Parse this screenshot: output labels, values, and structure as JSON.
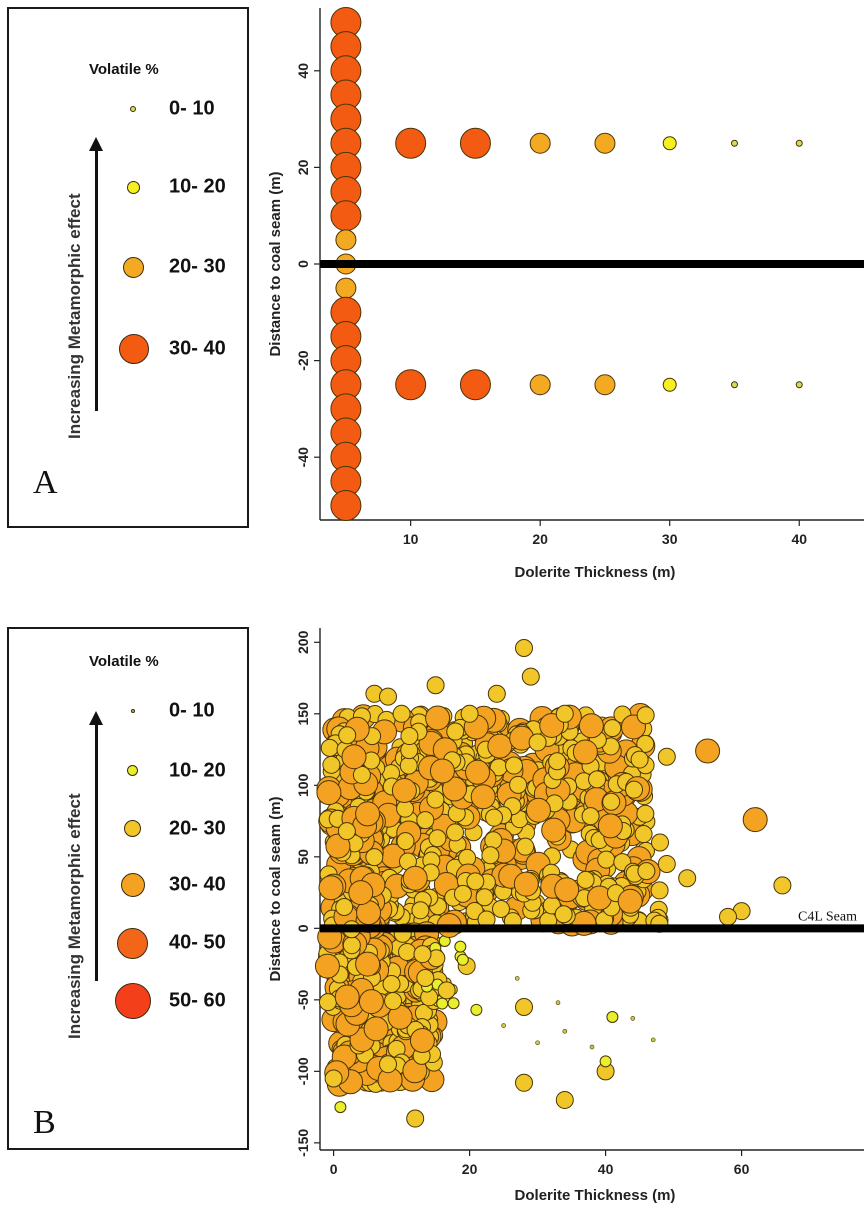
{
  "chart_data": [
    {
      "panel": "A",
      "type": "scatter",
      "xlabel": "Dolerite Thickness (m)",
      "ylabel": "Distance to coal seam (m)",
      "xlim": [
        3,
        45
      ],
      "ylim": [
        -53,
        53
      ],
      "xticks": [
        10,
        20,
        30,
        40
      ],
      "yticks": [
        -40,
        -20,
        0,
        20,
        40
      ],
      "seam_line_y": 0,
      "legend": {
        "title": "Volatile %",
        "items": [
          {
            "label": "0- 10",
            "color": "#d6dc58",
            "size": 6
          },
          {
            "label": "10- 20",
            "color": "#f7f020",
            "size": 13
          },
          {
            "label": "20- 30",
            "color": "#f3a921",
            "size": 20
          },
          {
            "label": "30- 40",
            "color": "#f35a12",
            "size": 30
          }
        ]
      },
      "points": [
        {
          "x": 5,
          "y": 50,
          "v": 38
        },
        {
          "x": 5,
          "y": 45,
          "v": 38
        },
        {
          "x": 5,
          "y": 40,
          "v": 38
        },
        {
          "x": 5,
          "y": 35,
          "v": 38
        },
        {
          "x": 5,
          "y": 30,
          "v": 38
        },
        {
          "x": 5,
          "y": 25,
          "v": 37
        },
        {
          "x": 5,
          "y": 20,
          "v": 36
        },
        {
          "x": 5,
          "y": 15,
          "v": 35
        },
        {
          "x": 5,
          "y": 10,
          "v": 31
        },
        {
          "x": 5,
          "y": 5,
          "v": 25
        },
        {
          "x": 5,
          "y": 0,
          "v": 20
        },
        {
          "x": 5,
          "y": -5,
          "v": 25
        },
        {
          "x": 5,
          "y": -10,
          "v": 31
        },
        {
          "x": 5,
          "y": -15,
          "v": 35
        },
        {
          "x": 5,
          "y": -20,
          "v": 36
        },
        {
          "x": 5,
          "y": -25,
          "v": 37
        },
        {
          "x": 5,
          "y": -30,
          "v": 38
        },
        {
          "x": 5,
          "y": -35,
          "v": 38
        },
        {
          "x": 5,
          "y": -40,
          "v": 38
        },
        {
          "x": 5,
          "y": -45,
          "v": 38
        },
        {
          "x": 5,
          "y": -50,
          "v": 38
        },
        {
          "x": 10,
          "y": 25,
          "v": 37
        },
        {
          "x": 15,
          "y": 25,
          "v": 33
        },
        {
          "x": 20,
          "y": 25,
          "v": 27
        },
        {
          "x": 25,
          "y": 25,
          "v": 23
        },
        {
          "x": 30,
          "y": 25,
          "v": 14
        },
        {
          "x": 35,
          "y": 25,
          "v": 8
        },
        {
          "x": 40,
          "y": 25,
          "v": 2
        },
        {
          "x": 10,
          "y": -25,
          "v": 37
        },
        {
          "x": 15,
          "y": -25,
          "v": 33
        },
        {
          "x": 20,
          "y": -25,
          "v": 27
        },
        {
          "x": 25,
          "y": -25,
          "v": 23
        },
        {
          "x": 30,
          "y": -25,
          "v": 14
        },
        {
          "x": 35,
          "y": -25,
          "v": 8
        },
        {
          "x": 40,
          "y": -25,
          "v": 2
        }
      ]
    },
    {
      "panel": "B",
      "type": "scatter",
      "xlabel": "Dolerite Thickness (m)",
      "ylabel": "Distance to coal seam (m)",
      "xlim": [
        -2,
        78
      ],
      "ylim": [
        -155,
        210
      ],
      "xticks": [
        0,
        20,
        40,
        60
      ],
      "yticks": [
        -150,
        -100,
        -50,
        0,
        50,
        100,
        150,
        200
      ],
      "seam_line_y": 0,
      "seam_label": "C4L Seam",
      "legend": {
        "title": "Volatile %",
        "items": [
          {
            "label": "0- 10",
            "color": "#c9c94a",
            "size": 4
          },
          {
            "label": "10- 20",
            "color": "#e8ef2c",
            "size": 11
          },
          {
            "label": "20- 30",
            "color": "#f1c628",
            "size": 17
          },
          {
            "label": "30- 40",
            "color": "#f3a321",
            "size": 24
          },
          {
            "label": "40- 50",
            "color": "#f3661a",
            "size": 31
          },
          {
            "label": "50- 60",
            "color": "#f3401a",
            "size": 36
          }
        ]
      },
      "points": [
        {
          "x": 28,
          "y": 196,
          "v": 28
        },
        {
          "x": 29,
          "y": 176,
          "v": 27
        },
        {
          "x": 6,
          "y": 164,
          "v": 28
        },
        {
          "x": 8,
          "y": 162,
          "v": 26
        },
        {
          "x": 15,
          "y": 170,
          "v": 24
        },
        {
          "x": 24,
          "y": 164,
          "v": 25
        },
        {
          "x": 55,
          "y": 124,
          "v": 36
        },
        {
          "x": 62,
          "y": 76,
          "v": 33
        },
        {
          "x": 66,
          "y": 30,
          "v": 24
        },
        {
          "x": 60,
          "y": 12,
          "v": 22
        },
        {
          "x": 58,
          "y": 8,
          "v": 20
        },
        {
          "x": 16,
          "y": 110,
          "v": 38
        },
        {
          "x": 22,
          "y": 92,
          "v": 35
        },
        {
          "x": 3,
          "y": 120,
          "v": 33
        },
        {
          "x": 5,
          "y": 80,
          "v": 34
        },
        {
          "x": 12,
          "y": 35,
          "v": 34
        },
        {
          "x": 4,
          "y": 25,
          "v": 32
        },
        {
          "x": 17,
          "y": 2,
          "v": 34
        },
        {
          "x": 5,
          "y": -25,
          "v": 32
        },
        {
          "x": 2,
          "y": -48,
          "v": 31
        },
        {
          "x": 8,
          "y": -95,
          "v": 27
        },
        {
          "x": 12,
          "y": -133,
          "v": 26
        },
        {
          "x": 1,
          "y": -125,
          "v": 15
        },
        {
          "x": 0,
          "y": -105,
          "v": 22
        },
        {
          "x": 28,
          "y": -108,
          "v": 25
        },
        {
          "x": 34,
          "y": -120,
          "v": 23
        },
        {
          "x": 40,
          "y": -100,
          "v": 20
        },
        {
          "x": 40,
          "y": -93,
          "v": 18
        },
        {
          "x": 41,
          "y": -62,
          "v": 19
        },
        {
          "x": 28,
          "y": -55,
          "v": 23
        },
        {
          "x": 21,
          "y": -57,
          "v": 15
        },
        {
          "x": 19,
          "y": -22,
          "v": 14
        },
        {
          "x": 33,
          "y": -52,
          "v": 8
        },
        {
          "x": 34,
          "y": -72,
          "v": 8
        },
        {
          "x": 30,
          "y": -80,
          "v": 5
        },
        {
          "x": 47,
          "y": -78,
          "v": 4
        },
        {
          "x": 38,
          "y": -83,
          "v": 4
        },
        {
          "x": 25,
          "y": -68,
          "v": 5
        },
        {
          "x": 27,
          "y": -35,
          "v": 5
        },
        {
          "x": 44,
          "y": -63,
          "v": 4
        },
        {
          "x": 48,
          "y": 60,
          "v": 28
        },
        {
          "x": 49,
          "y": 45,
          "v": 27
        },
        {
          "x": 46,
          "y": 40,
          "v": 25
        },
        {
          "x": 52,
          "y": 35,
          "v": 20
        },
        {
          "x": 49,
          "y": 120,
          "v": 24
        },
        {
          "x": 45,
          "y": 118,
          "v": 23
        },
        {
          "x": 41,
          "y": 140,
          "v": 25
        },
        {
          "x": 34,
          "y": 150,
          "v": 24
        },
        {
          "x": 30,
          "y": 130,
          "v": 26
        },
        {
          "x": 20,
          "y": 150,
          "v": 25
        },
        {
          "x": 10,
          "y": 150,
          "v": 22
        },
        {
          "x": 2,
          "y": 135,
          "v": 27
        }
      ],
      "cloud_clusters": [
        {
          "x": [
            0,
            46
          ],
          "y": [
            40,
            150
          ],
          "n": 520,
          "v": [
            20,
            36
          ],
          "seed": 11
        },
        {
          "x": [
            0,
            48
          ],
          "y": [
            3,
            40
          ],
          "n": 200,
          "v": [
            20,
            34
          ],
          "seed": 23
        },
        {
          "x": [
            0,
            15
          ],
          "y": [
            -110,
            -3
          ],
          "n": 320,
          "v": [
            20,
            34
          ],
          "seed": 37
        },
        {
          "x": [
            -1,
            6
          ],
          "y": [
            -60,
            140
          ],
          "n": 160,
          "v": [
            22,
            38
          ],
          "seed": 41
        },
        {
          "x": [
            13,
            22
          ],
          "y": [
            -55,
            -5
          ],
          "n": 20,
          "v": [
            10,
            28
          ],
          "seed": 53
        }
      ]
    }
  ],
  "panel_a": {
    "letter": "A",
    "legend_title": "Volatile %",
    "arrow_label": "Increasing Metamorphic effect",
    "legend_labels": [
      "0- 10",
      "10- 20",
      "20- 30",
      "30- 40"
    ]
  },
  "panel_b": {
    "letter": "B",
    "legend_title": "Volatile %",
    "arrow_label": "Increasing Metamorphic effect",
    "legend_labels": [
      "0- 10",
      "10- 20",
      "20- 30",
      "30- 40",
      "40- 50",
      "50- 60"
    ]
  }
}
